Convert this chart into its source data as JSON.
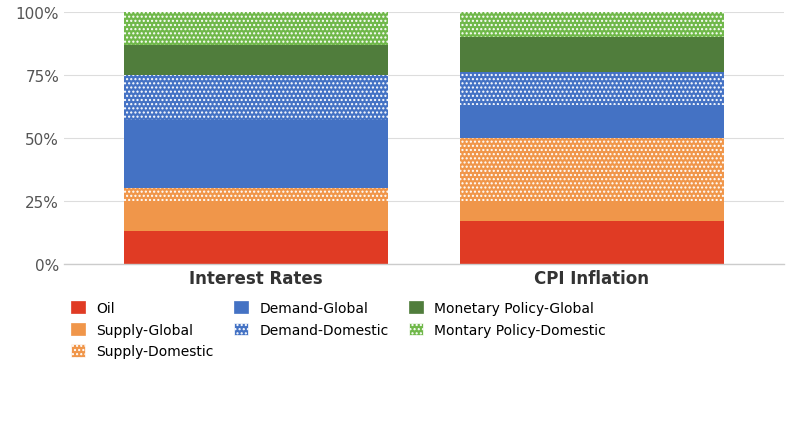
{
  "categories": [
    "Interest Rates",
    "CPI Inflation"
  ],
  "segments": [
    {
      "label": "Oil",
      "color": "#e03b24",
      "hatch": "",
      "values": [
        0.13,
        0.17
      ]
    },
    {
      "label": "Supply-Global",
      "color": "#f0964a",
      "hatch": "",
      "values": [
        0.12,
        0.08
      ]
    },
    {
      "label": "Supply-Domestic",
      "color": "#f0964a",
      "hatch": "....",
      "values": [
        0.05,
        0.25
      ]
    },
    {
      "label": "Demand-Global",
      "color": "#4472c4",
      "hatch": "",
      "values": [
        0.27,
        0.13
      ]
    },
    {
      "label": "Demand-Domestic",
      "color": "#4472c4",
      "hatch": "....",
      "values": [
        0.18,
        0.13
      ]
    },
    {
      "label": "Monetary Policy-Global",
      "color": "#507d3c",
      "hatch": "",
      "values": [
        0.12,
        0.14
      ]
    },
    {
      "label": "Montary Policy-Domestic",
      "color": "#70b84a",
      "hatch": "....",
      "values": [
        0.13,
        0.1
      ]
    }
  ],
  "ylim": [
    0,
    1
  ],
  "yticks": [
    0,
    0.25,
    0.5,
    0.75,
    1.0
  ],
  "yticklabels": [
    "0%",
    "25%",
    "50%",
    "75%",
    "100%"
  ],
  "background_color": "#ffffff",
  "bar_width": 0.55,
  "bar_positions": [
    0.3,
    1.0
  ],
  "xlim": [
    -0.1,
    1.4
  ],
  "legend_ncol": 3,
  "figsize": [
    8.0,
    4.27
  ],
  "dpi": 100,
  "legend_items_row1": [
    "Oil",
    "Supply-Global",
    "Supply-Domestic"
  ],
  "legend_items_row2": [
    "Demand-Global",
    "Demand-Domestic",
    "Monetary Policy-Global"
  ],
  "legend_items_row3": [
    "Montary Policy-Domestic"
  ]
}
